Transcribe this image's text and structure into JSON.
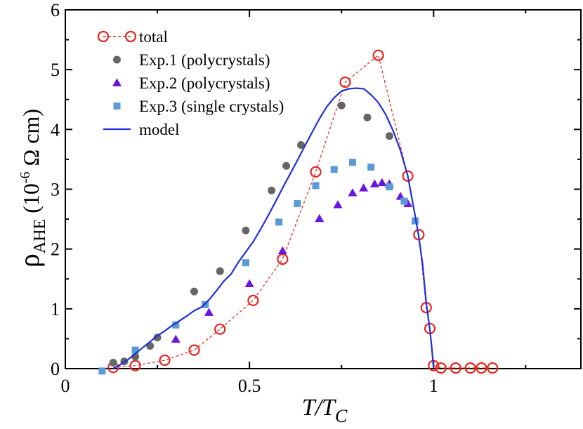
{
  "chart_data": {
    "type": "scatter",
    "xlabel": "T/T",
    "xlabel_sub": "C",
    "ylabel": "ρ",
    "ylabel_sub": "AHE",
    "ylabel_unit": "(10",
    "ylabel_exp": "-6",
    "ylabel_tail": " Ω cm)",
    "xlim": [
      0,
      1.4
    ],
    "ylim": [
      0,
      6
    ],
    "xticks": [
      0,
      0.5,
      1
    ],
    "xtick_labels": [
      "0",
      "0.5",
      "1"
    ],
    "yticks": [
      0,
      1,
      2,
      3,
      4,
      5,
      6
    ],
    "ytick_labels": [
      "0",
      "1",
      "2",
      "3",
      "4",
      "5",
      "6"
    ],
    "legend_position": "top-left",
    "series": [
      {
        "name": "total",
        "marker": "open-circle",
        "line": "dashed",
        "color": "#e8231d",
        "points": [
          [
            0.13,
            0.02
          ],
          [
            0.19,
            0.05
          ],
          [
            0.27,
            0.14
          ],
          [
            0.35,
            0.31
          ],
          [
            0.42,
            0.66
          ],
          [
            0.51,
            1.14
          ],
          [
            0.59,
            1.83
          ],
          [
            0.68,
            3.29
          ],
          [
            0.76,
            4.79
          ],
          [
            0.85,
            5.24
          ],
          [
            0.93,
            3.22
          ],
          [
            0.96,
            2.24
          ],
          [
            0.98,
            1.02
          ],
          [
            0.99,
            0.67
          ],
          [
            1.0,
            0.05
          ],
          [
            1.02,
            0.01
          ],
          [
            1.06,
            0.01
          ],
          [
            1.1,
            0.01
          ],
          [
            1.13,
            0.01
          ],
          [
            1.16,
            0.01
          ]
        ]
      },
      {
        "name": "Exp.1 (polycrystals)",
        "marker": "filled-circle",
        "color": "#666666",
        "points": [
          [
            0.13,
            0.1
          ],
          [
            0.16,
            0.12
          ],
          [
            0.19,
            0.2
          ],
          [
            0.23,
            0.38
          ],
          [
            0.25,
            0.52
          ],
          [
            0.35,
            1.29
          ],
          [
            0.42,
            1.63
          ],
          [
            0.49,
            2.31
          ],
          [
            0.56,
            2.98
          ],
          [
            0.6,
            3.39
          ],
          [
            0.64,
            3.74
          ],
          [
            0.75,
            4.4
          ],
          [
            0.82,
            4.2
          ],
          [
            0.88,
            3.89
          ]
        ]
      },
      {
        "name": "Exp.2 (polycrystals)",
        "marker": "filled-triangle",
        "color": "#6b13e0",
        "points": [
          [
            0.3,
            0.49
          ],
          [
            0.39,
            0.94
          ],
          [
            0.5,
            1.42
          ],
          [
            0.59,
            1.97
          ],
          [
            0.69,
            2.51
          ],
          [
            0.74,
            2.74
          ],
          [
            0.78,
            2.94
          ],
          [
            0.81,
            3.02
          ],
          [
            0.84,
            3.09
          ],
          [
            0.86,
            3.11
          ],
          [
            0.88,
            3.09
          ],
          [
            0.91,
            2.88
          ],
          [
            0.93,
            2.76
          ]
        ]
      },
      {
        "name": "Exp.3 (single crystals)",
        "marker": "filled-square",
        "color": "#5b9bd5",
        "points": [
          [
            0.1,
            -0.04
          ],
          [
            0.19,
            0.31
          ],
          [
            0.3,
            0.73
          ],
          [
            0.38,
            1.07
          ],
          [
            0.49,
            1.77
          ],
          [
            0.58,
            2.45
          ],
          [
            0.63,
            2.76
          ],
          [
            0.68,
            3.06
          ],
          [
            0.73,
            3.33
          ],
          [
            0.78,
            3.45
          ],
          [
            0.83,
            3.37
          ],
          [
            0.88,
            3.04
          ],
          [
            0.92,
            2.8
          ],
          [
            0.95,
            2.47
          ]
        ]
      },
      {
        "name": "model",
        "marker": "none",
        "line": "solid",
        "color": "#1f2fd8",
        "points": [
          [
            0.13,
            0.0
          ],
          [
            0.15,
            0.07
          ],
          [
            0.17,
            0.15
          ],
          [
            0.19,
            0.25
          ],
          [
            0.21,
            0.35
          ],
          [
            0.23,
            0.45
          ],
          [
            0.25,
            0.55
          ],
          [
            0.27,
            0.63
          ],
          [
            0.29,
            0.72
          ],
          [
            0.31,
            0.8
          ],
          [
            0.33,
            0.88
          ],
          [
            0.35,
            0.97
          ],
          [
            0.37,
            1.03
          ],
          [
            0.39,
            1.15
          ],
          [
            0.41,
            1.3
          ],
          [
            0.43,
            1.46
          ],
          [
            0.45,
            1.58
          ],
          [
            0.47,
            1.78
          ],
          [
            0.49,
            1.95
          ],
          [
            0.51,
            2.12
          ],
          [
            0.53,
            2.33
          ],
          [
            0.55,
            2.55
          ],
          [
            0.57,
            2.78
          ],
          [
            0.59,
            3.02
          ],
          [
            0.61,
            3.25
          ],
          [
            0.63,
            3.48
          ],
          [
            0.65,
            3.72
          ],
          [
            0.67,
            3.95
          ],
          [
            0.69,
            4.18
          ],
          [
            0.71,
            4.38
          ],
          [
            0.73,
            4.53
          ],
          [
            0.75,
            4.64
          ],
          [
            0.77,
            4.68
          ],
          [
            0.79,
            4.69
          ],
          [
            0.81,
            4.68
          ],
          [
            0.83,
            4.58
          ],
          [
            0.85,
            4.45
          ],
          [
            0.87,
            4.25
          ],
          [
            0.89,
            3.98
          ],
          [
            0.91,
            3.65
          ],
          [
            0.93,
            3.22
          ],
          [
            0.95,
            2.55
          ],
          [
            0.96,
            2.2
          ],
          [
            0.97,
            1.75
          ],
          [
            0.98,
            1.1
          ],
          [
            0.99,
            0.65
          ],
          [
            0.995,
            0.35
          ],
          [
            1.0,
            0.0
          ]
        ]
      }
    ]
  }
}
